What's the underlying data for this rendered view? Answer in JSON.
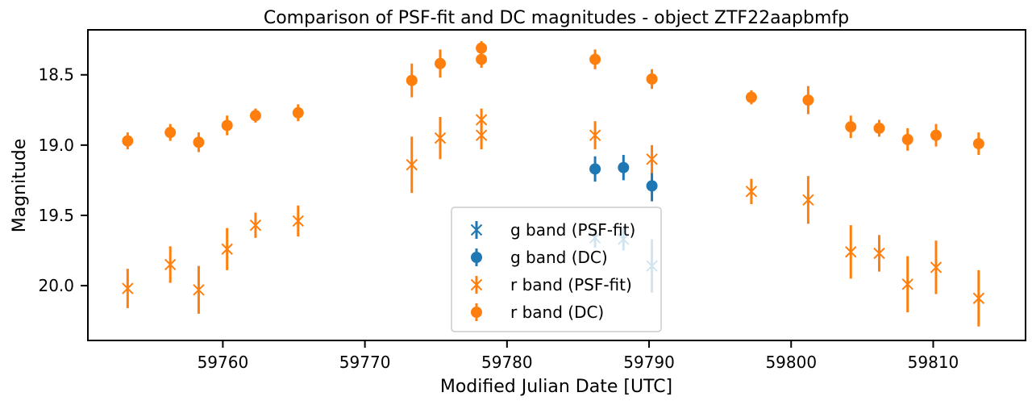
{
  "chart_data": {
    "type": "scatter",
    "title": "Comparison of PSF-fit and DC magnitudes - object ZTF22aapbmfp",
    "xlabel": "Modified Julian Date [UTC]",
    "ylabel": "Magnitude",
    "xlim": [
      59750.5,
      59816.5
    ],
    "ylim": [
      20.39,
      18.18
    ],
    "y_inverted": true,
    "grid": false,
    "legend_position": "lower-center",
    "x_ticks": [
      59760,
      59770,
      59780,
      59790,
      59800,
      59810
    ],
    "x_tick_labels": [
      "59760",
      "59770",
      "59780",
      "59790",
      "59800",
      "59810"
    ],
    "y_ticks": [
      18.5,
      19.0,
      19.5,
      20.0
    ],
    "y_tick_labels": [
      "18.5",
      "19.0",
      "19.5",
      "20.0"
    ],
    "series": [
      {
        "name": "g band (PSF-fit)",
        "marker": "x",
        "color": "#1f77b4",
        "points": [
          {
            "x": 59786.2,
            "y": 19.66,
            "err": 0.07
          },
          {
            "x": 59788.2,
            "y": 19.67,
            "err": 0.08
          },
          {
            "x": 59790.2,
            "y": 19.86,
            "err": 0.19
          }
        ]
      },
      {
        "name": "g band (DC)",
        "marker": "o",
        "color": "#1f77b4",
        "points": [
          {
            "x": 59786.2,
            "y": 19.17,
            "err": 0.09
          },
          {
            "x": 59788.2,
            "y": 19.16,
            "err": 0.09
          },
          {
            "x": 59790.2,
            "y": 19.29,
            "err": 0.11
          }
        ]
      },
      {
        "name": "r band (PSF-fit)",
        "marker": "x",
        "color": "#ff7f0e",
        "points": [
          {
            "x": 59753.3,
            "y": 20.02,
            "err": 0.14
          },
          {
            "x": 59756.3,
            "y": 19.85,
            "err": 0.13
          },
          {
            "x": 59758.3,
            "y": 20.03,
            "err": 0.17
          },
          {
            "x": 59760.3,
            "y": 19.74,
            "err": 0.15
          },
          {
            "x": 59762.3,
            "y": 19.57,
            "err": 0.09
          },
          {
            "x": 59765.3,
            "y": 19.54,
            "err": 0.11
          },
          {
            "x": 59773.3,
            "y": 19.14,
            "err": 0.2
          },
          {
            "x": 59775.3,
            "y": 18.95,
            "err": 0.15
          },
          {
            "x": 59778.2,
            "y": 18.82,
            "err": 0.08
          },
          {
            "x": 59778.2,
            "y": 18.93,
            "err": 0.1
          },
          {
            "x": 59786.2,
            "y": 18.93,
            "err": 0.1
          },
          {
            "x": 59790.2,
            "y": 19.1,
            "err": 0.1
          },
          {
            "x": 59797.2,
            "y": 19.33,
            "err": 0.09
          },
          {
            "x": 59801.2,
            "y": 19.39,
            "err": 0.17
          },
          {
            "x": 59804.2,
            "y": 19.76,
            "err": 0.19
          },
          {
            "x": 59806.2,
            "y": 19.77,
            "err": 0.13
          },
          {
            "x": 59808.2,
            "y": 19.99,
            "err": 0.2
          },
          {
            "x": 59810.2,
            "y": 19.87,
            "err": 0.19
          },
          {
            "x": 59813.2,
            "y": 20.09,
            "err": 0.2
          }
        ]
      },
      {
        "name": "r band (DC)",
        "marker": "o",
        "color": "#ff7f0e",
        "points": [
          {
            "x": 59753.3,
            "y": 18.97,
            "err": 0.06
          },
          {
            "x": 59756.3,
            "y": 18.91,
            "err": 0.06
          },
          {
            "x": 59758.3,
            "y": 18.98,
            "err": 0.07
          },
          {
            "x": 59760.3,
            "y": 18.86,
            "err": 0.07
          },
          {
            "x": 59762.3,
            "y": 18.79,
            "err": 0.05
          },
          {
            "x": 59765.3,
            "y": 18.77,
            "err": 0.06
          },
          {
            "x": 59773.3,
            "y": 18.54,
            "err": 0.12
          },
          {
            "x": 59775.3,
            "y": 18.42,
            "err": 0.1
          },
          {
            "x": 59778.2,
            "y": 18.31,
            "err": 0.05
          },
          {
            "x": 59778.2,
            "y": 18.39,
            "err": 0.06
          },
          {
            "x": 59786.2,
            "y": 18.39,
            "err": 0.07
          },
          {
            "x": 59790.2,
            "y": 18.53,
            "err": 0.07
          },
          {
            "x": 59797.2,
            "y": 18.66,
            "err": 0.05
          },
          {
            "x": 59801.2,
            "y": 18.68,
            "err": 0.1
          },
          {
            "x": 59804.2,
            "y": 18.87,
            "err": 0.08
          },
          {
            "x": 59806.2,
            "y": 18.88,
            "err": 0.06
          },
          {
            "x": 59808.2,
            "y": 18.96,
            "err": 0.08
          },
          {
            "x": 59810.2,
            "y": 18.93,
            "err": 0.08
          },
          {
            "x": 59813.2,
            "y": 18.99,
            "err": 0.08
          }
        ]
      }
    ]
  }
}
